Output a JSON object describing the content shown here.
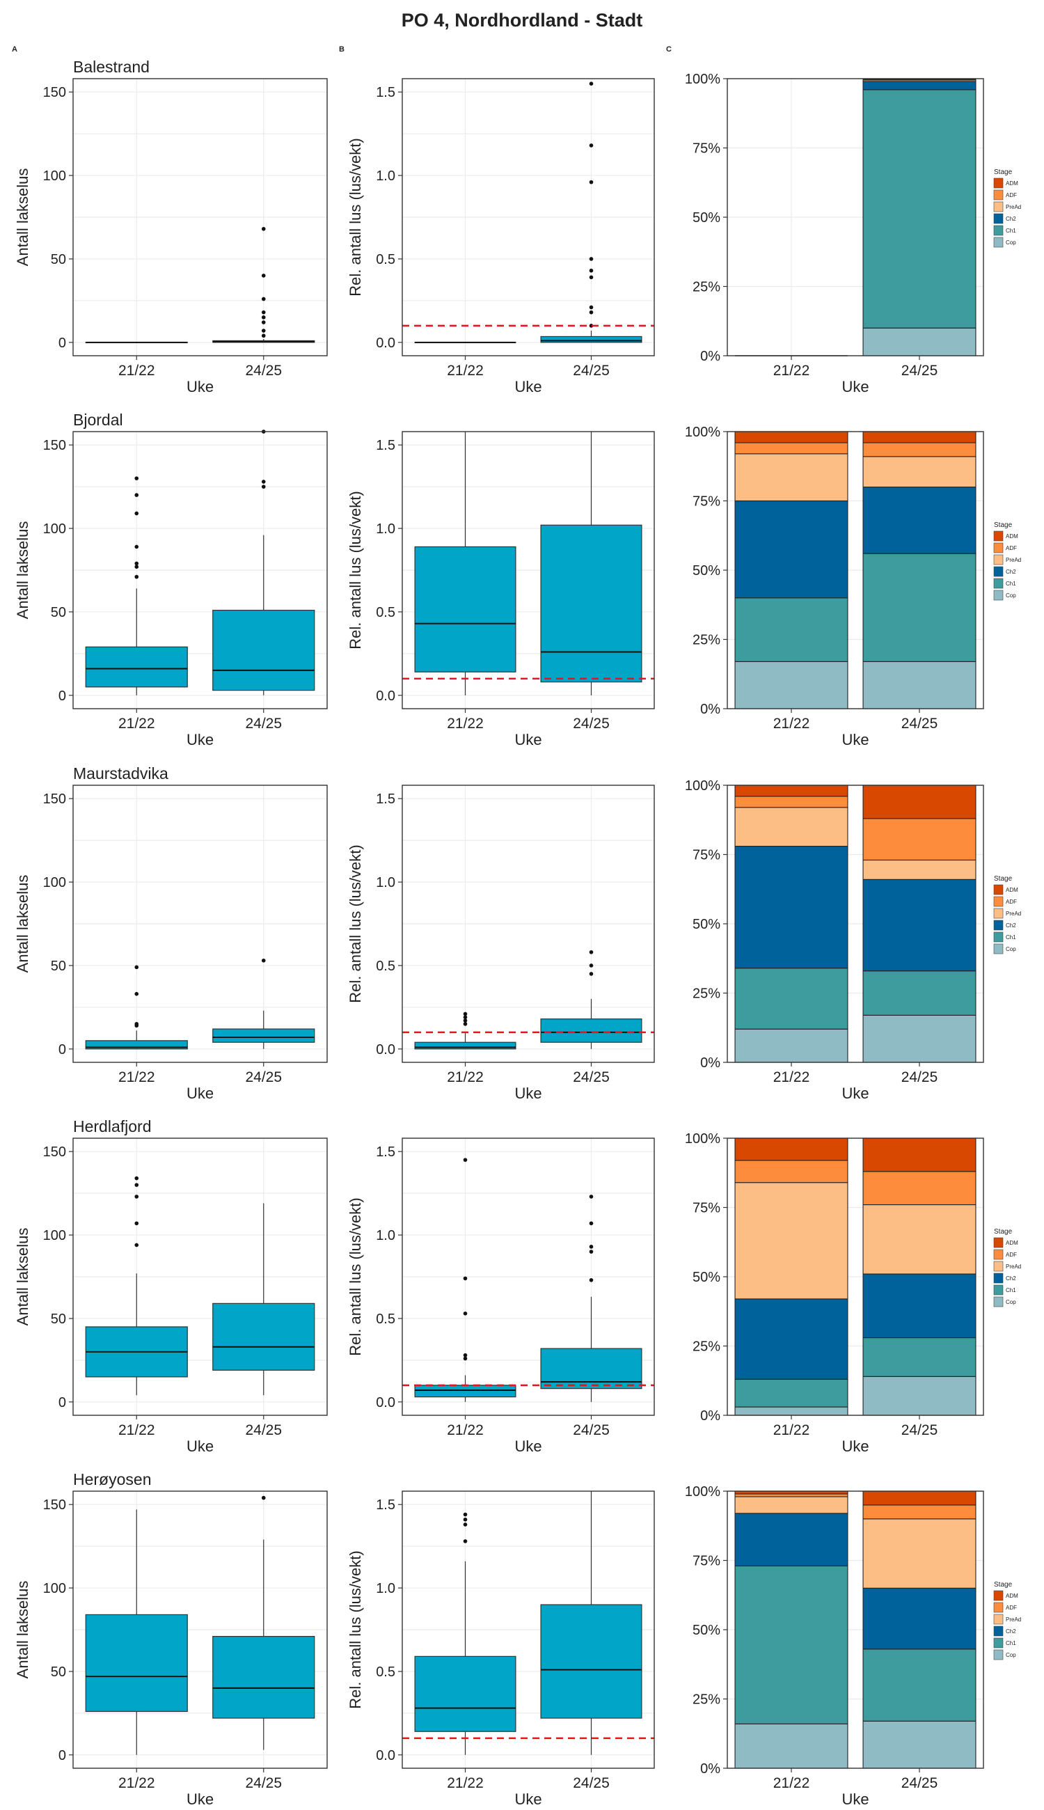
{
  "title": "PO 4, Nordhordland - Stadt",
  "panel_tags": [
    "A",
    "B",
    "C"
  ],
  "legend": {
    "title": "Stage",
    "items": [
      {
        "label": "ADM",
        "color": "#d94801"
      },
      {
        "label": "ADF",
        "color": "#fd8d3c"
      },
      {
        "label": "PreAd",
        "color": "#fdbe85"
      },
      {
        "label": "Ch2",
        "color": "#00629b"
      },
      {
        "label": "Ch1",
        "color": "#3e9c9f"
      },
      {
        "label": "Cop",
        "color": "#8fbcc4"
      }
    ]
  },
  "colors": {
    "box_fill": "#00a5c7",
    "threshold": "#e8141c"
  },
  "chart_data": [
    {
      "type": "box",
      "site": "Balestrand",
      "column": "A",
      "title": "Balestrand",
      "xlabel": "Uke",
      "ylabel": "Antall lakselus",
      "categories": [
        "21/22",
        "24/25"
      ],
      "ylim": [
        -8,
        158
      ],
      "yticks": [
        0,
        50,
        100,
        150
      ],
      "boxes": [
        {
          "q1": 0,
          "median": 0,
          "q3": 0,
          "lo": 0,
          "hi": 0,
          "outliers": []
        },
        {
          "q1": 0,
          "median": 0.5,
          "q3": 1,
          "lo": 0,
          "hi": 2,
          "outliers": [
            4,
            7,
            12,
            15,
            18,
            26,
            40,
            68
          ]
        }
      ]
    },
    {
      "type": "box",
      "site": "Balestrand",
      "column": "B",
      "xlabel": "Uke",
      "ylabel": "Rel. antall lus (lus/vekt)",
      "categories": [
        "21/22",
        "24/25"
      ],
      "ylim": [
        -0.08,
        1.58
      ],
      "yticks": [
        0,
        0.5,
        1,
        1.5
      ],
      "threshold": 0.1,
      "boxes": [
        {
          "q1": 0,
          "median": 0,
          "q3": 0,
          "lo": 0,
          "hi": 0,
          "outliers": []
        },
        {
          "q1": 0,
          "median": 0.01,
          "q3": 0.035,
          "lo": 0,
          "hi": 0.07,
          "outliers": [
            0.1,
            0.18,
            0.21,
            0.39,
            0.43,
            0.5,
            0.96,
            1.18,
            1.55
          ]
        }
      ]
    },
    {
      "type": "stacked_bar",
      "site": "Balestrand",
      "column": "C",
      "xlabel": "Uke",
      "categories": [
        "21/22",
        "24/25"
      ],
      "ylim": [
        0,
        1
      ],
      "yticks": [
        "0%",
        "25%",
        "50%",
        "75%",
        "100%"
      ],
      "stages": [
        "Cop",
        "Ch1",
        "Ch2",
        "PreAd",
        "ADF",
        "ADM"
      ],
      "values": [
        [
          0,
          0,
          0,
          0,
          0,
          0
        ],
        [
          0.1,
          0.86,
          0.03,
          0.005,
          0.003,
          0.002
        ]
      ]
    },
    {
      "type": "box",
      "site": "Bjordal",
      "column": "A",
      "title": "Bjordal",
      "xlabel": "Uke",
      "ylabel": "Antall lakselus",
      "categories": [
        "21/22",
        "24/25"
      ],
      "ylim": [
        -8,
        158
      ],
      "yticks": [
        0,
        50,
        100,
        150
      ],
      "boxes": [
        {
          "q1": 5,
          "median": 16,
          "q3": 29,
          "lo": 0,
          "hi": 64,
          "outliers": [
            71,
            77,
            79,
            89,
            109,
            120,
            130
          ]
        },
        {
          "q1": 3,
          "median": 15,
          "q3": 51,
          "lo": 0,
          "hi": 96,
          "outliers": [
            125,
            128,
            158
          ]
        }
      ]
    },
    {
      "type": "box",
      "site": "Bjordal",
      "column": "B",
      "xlabel": "Uke",
      "ylabel": "Rel. antall lus (lus/vekt)",
      "categories": [
        "21/22",
        "24/25"
      ],
      "ylim": [
        -0.08,
        1.58
      ],
      "yticks": [
        0,
        0.5,
        1,
        1.5
      ],
      "threshold": 0.1,
      "boxes": [
        {
          "q1": 0.14,
          "median": 0.43,
          "q3": 0.89,
          "lo": 0,
          "hi": 1.58,
          "outliers": []
        },
        {
          "q1": 0.08,
          "median": 0.26,
          "q3": 1.02,
          "lo": 0,
          "hi": 1.58,
          "outliers": []
        }
      ]
    },
    {
      "type": "stacked_bar",
      "site": "Bjordal",
      "column": "C",
      "xlabel": "Uke",
      "categories": [
        "21/22",
        "24/25"
      ],
      "ylim": [
        0,
        1
      ],
      "yticks": [
        "0%",
        "25%",
        "50%",
        "75%",
        "100%"
      ],
      "stages": [
        "Cop",
        "Ch1",
        "Ch2",
        "PreAd",
        "ADF",
        "ADM"
      ],
      "values": [
        [
          0.17,
          0.23,
          0.35,
          0.17,
          0.04,
          0.04
        ],
        [
          0.17,
          0.39,
          0.24,
          0.11,
          0.05,
          0.04
        ]
      ]
    },
    {
      "type": "box",
      "site": "Maurstadvika",
      "column": "A",
      "title": "Maurstadvika",
      "xlabel": "Uke",
      "ylabel": "Antall lakselus",
      "categories": [
        "21/22",
        "24/25"
      ],
      "ylim": [
        -8,
        158
      ],
      "yticks": [
        0,
        50,
        100,
        150
      ],
      "boxes": [
        {
          "q1": 0,
          "median": 1,
          "q3": 5,
          "lo": 0,
          "hi": 11,
          "outliers": [
            14,
            15,
            33,
            49
          ]
        },
        {
          "q1": 4,
          "median": 7,
          "q3": 12,
          "lo": 0,
          "hi": 23,
          "outliers": [
            53
          ]
        }
      ]
    },
    {
      "type": "box",
      "site": "Maurstadvika",
      "column": "B",
      "xlabel": "Uke",
      "ylabel": "Rel. antall lus (lus/vekt)",
      "categories": [
        "21/22",
        "24/25"
      ],
      "ylim": [
        -0.08,
        1.58
      ],
      "yticks": [
        0,
        0.5,
        1,
        1.5
      ],
      "threshold": 0.1,
      "boxes": [
        {
          "q1": 0,
          "median": 0.01,
          "q3": 0.04,
          "lo": 0,
          "hi": 0.1,
          "outliers": [
            0.15,
            0.17,
            0.19,
            0.21
          ]
        },
        {
          "q1": 0.04,
          "median": 0.1,
          "q3": 0.18,
          "lo": 0,
          "hi": 0.3,
          "outliers": [
            0.45,
            0.5,
            0.58
          ]
        }
      ]
    },
    {
      "type": "stacked_bar",
      "site": "Maurstadvika",
      "column": "C",
      "xlabel": "Uke",
      "categories": [
        "21/22",
        "24/25"
      ],
      "ylim": [
        0,
        1
      ],
      "yticks": [
        "0%",
        "25%",
        "50%",
        "75%",
        "100%"
      ],
      "stages": [
        "Cop",
        "Ch1",
        "Ch2",
        "PreAd",
        "ADF",
        "ADM"
      ],
      "values": [
        [
          0.12,
          0.22,
          0.44,
          0.14,
          0.04,
          0.04
        ],
        [
          0.17,
          0.16,
          0.33,
          0.07,
          0.15,
          0.12
        ]
      ]
    },
    {
      "type": "box",
      "site": "Herdlafjord",
      "column": "A",
      "title": "Herdlafjord",
      "xlabel": "Uke",
      "ylabel": "Antall lakselus",
      "categories": [
        "21/22",
        "24/25"
      ],
      "ylim": [
        -8,
        158
      ],
      "yticks": [
        0,
        50,
        100,
        150
      ],
      "boxes": [
        {
          "q1": 15,
          "median": 30,
          "q3": 45,
          "lo": 4,
          "hi": 77,
          "outliers": [
            94,
            107,
            123,
            130,
            134
          ]
        },
        {
          "q1": 19,
          "median": 33,
          "q3": 59,
          "lo": 4,
          "hi": 119,
          "outliers": []
        }
      ]
    },
    {
      "type": "box",
      "site": "Herdlafjord",
      "column": "B",
      "xlabel": "Uke",
      "ylabel": "Rel. antall lus (lus/vekt)",
      "categories": [
        "21/22",
        "24/25"
      ],
      "ylim": [
        -0.08,
        1.58
      ],
      "yticks": [
        0,
        0.5,
        1,
        1.5
      ],
      "threshold": 0.1,
      "boxes": [
        {
          "q1": 0.03,
          "median": 0.07,
          "q3": 0.1,
          "lo": 0,
          "hi": 0.16,
          "outliers": [
            0.26,
            0.28,
            0.53,
            0.74,
            1.45
          ]
        },
        {
          "q1": 0.08,
          "median": 0.12,
          "q3": 0.32,
          "lo": 0,
          "hi": 0.63,
          "outliers": [
            0.73,
            0.9,
            0.93,
            1.07,
            1.23
          ]
        }
      ]
    },
    {
      "type": "stacked_bar",
      "site": "Herdlafjord",
      "column": "C",
      "xlabel": "Uke",
      "categories": [
        "21/22",
        "24/25"
      ],
      "ylim": [
        0,
        1
      ],
      "yticks": [
        "0%",
        "25%",
        "50%",
        "75%",
        "100%"
      ],
      "stages": [
        "Cop",
        "Ch1",
        "Ch2",
        "PreAd",
        "ADF",
        "ADM"
      ],
      "values": [
        [
          0.03,
          0.1,
          0.29,
          0.42,
          0.08,
          0.08
        ],
        [
          0.14,
          0.14,
          0.23,
          0.25,
          0.12,
          0.12
        ]
      ]
    },
    {
      "type": "box",
      "site": "Herøyosen",
      "column": "A",
      "title": "Herøyosen",
      "xlabel": "Uke",
      "ylabel": "Antall lakselus",
      "categories": [
        "21/22",
        "24/25"
      ],
      "ylim": [
        -8,
        158
      ],
      "yticks": [
        0,
        50,
        100,
        150
      ],
      "boxes": [
        {
          "q1": 26,
          "median": 47,
          "q3": 84,
          "lo": 0,
          "hi": 147,
          "outliers": []
        },
        {
          "q1": 22,
          "median": 40,
          "q3": 71,
          "lo": 3,
          "hi": 129,
          "outliers": [
            154
          ]
        }
      ]
    },
    {
      "type": "box",
      "site": "Herøyosen",
      "column": "B",
      "xlabel": "Uke",
      "ylabel": "Rel. antall lus (lus/vekt)",
      "categories": [
        "21/22",
        "24/25"
      ],
      "ylim": [
        -0.08,
        1.58
      ],
      "yticks": [
        0,
        0.5,
        1,
        1.5
      ],
      "threshold": 0.1,
      "boxes": [
        {
          "q1": 0.14,
          "median": 0.28,
          "q3": 0.59,
          "lo": 0,
          "hi": 1.16,
          "outliers": [
            1.28,
            1.38,
            1.41,
            1.44
          ]
        },
        {
          "q1": 0.22,
          "median": 0.51,
          "q3": 0.9,
          "lo": 0,
          "hi": 1.58,
          "outliers": []
        }
      ]
    },
    {
      "type": "stacked_bar",
      "site": "Herøyosen",
      "column": "C",
      "xlabel": "Uke",
      "categories": [
        "21/22",
        "24/25"
      ],
      "ylim": [
        0,
        1
      ],
      "yticks": [
        "0%",
        "25%",
        "50%",
        "75%",
        "100%"
      ],
      "stages": [
        "Cop",
        "Ch1",
        "Ch2",
        "PreAd",
        "ADF",
        "ADM"
      ],
      "values": [
        [
          0.16,
          0.57,
          0.19,
          0.06,
          0.01,
          0.01
        ],
        [
          0.17,
          0.26,
          0.22,
          0.25,
          0.05,
          0.05
        ]
      ]
    }
  ]
}
